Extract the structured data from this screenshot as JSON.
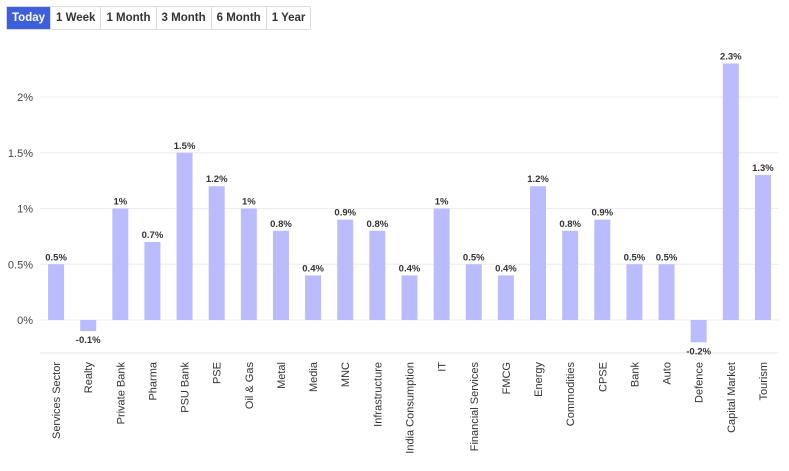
{
  "range_tabs": [
    {
      "label": "Today",
      "active": true
    },
    {
      "label": "1 Week",
      "active": false
    },
    {
      "label": "1 Month",
      "active": false
    },
    {
      "label": "3 Month",
      "active": false
    },
    {
      "label": "6 Month",
      "active": false
    },
    {
      "label": "1 Year",
      "active": false
    }
  ],
  "chart_data": {
    "type": "bar",
    "title": "",
    "xlabel": "",
    "ylabel": "",
    "ylim": [
      -0.3,
      2.4
    ],
    "yticks": [
      0,
      0.5,
      1,
      1.5,
      2
    ],
    "ytick_labels": [
      "0%",
      "0.5%",
      "1%",
      "1.5%",
      "2%"
    ],
    "grid": true,
    "bar_color": "#bbbcfd",
    "categories": [
      "Services Sector",
      "Realty",
      "Private Bank",
      "Pharma",
      "PSU Bank",
      "PSE",
      "Oil & Gas",
      "Metal",
      "Media",
      "MNC",
      "Infrastructure",
      "India Consumption",
      "IT",
      "Financial Services",
      "FMCG",
      "Energy",
      "Commodities",
      "CPSE",
      "Bank",
      "Auto",
      "Defence",
      "Capital Market",
      "Tourism"
    ],
    "values": [
      0.5,
      -0.1,
      1,
      0.7,
      1.5,
      1.2,
      1,
      0.8,
      0.4,
      0.9,
      0.8,
      0.4,
      1,
      0.5,
      0.4,
      1.2,
      0.8,
      0.9,
      0.5,
      0.5,
      -0.2,
      2.3,
      1.3
    ],
    "value_labels": [
      "0.5%",
      "-0.1%",
      "1%",
      "0.7%",
      "1.5%",
      "1.2%",
      "1%",
      "0.8%",
      "0.4%",
      "0.9%",
      "0.8%",
      "0.4%",
      "1%",
      "0.5%",
      "0.4%",
      "1.2%",
      "0.8%",
      "0.9%",
      "0.5%",
      "0.5%",
      "-0.2%",
      "2.3%",
      "1.3%"
    ]
  }
}
